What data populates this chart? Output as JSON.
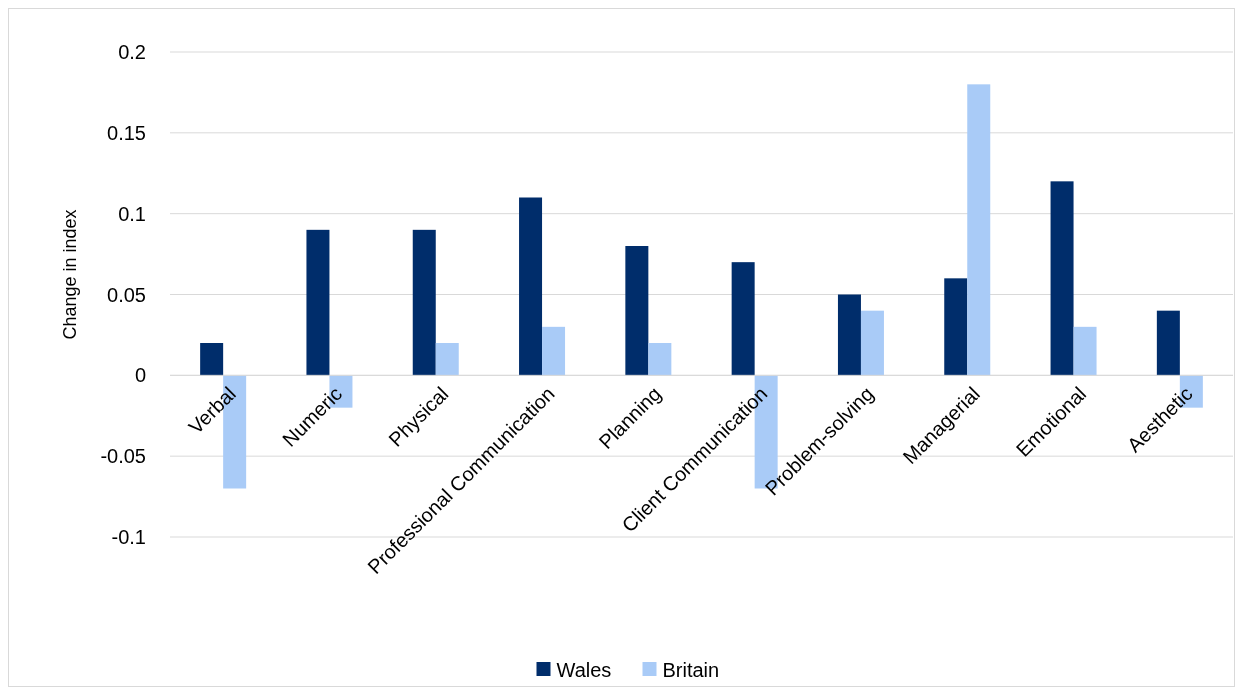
{
  "chart_data": {
    "type": "bar",
    "ylabel": "Change in index",
    "categories": [
      "Verbal",
      "Numeric",
      "Physical",
      "Professional Communication",
      "Planning",
      "Client Communication",
      "Problem-solving",
      "Managerial",
      "Emotional",
      "Aesthetic"
    ],
    "series": [
      {
        "name": "Wales",
        "color": "#002d6b",
        "values": [
          0.02,
          0.09,
          0.09,
          0.11,
          0.08,
          0.07,
          0.05,
          0.06,
          0.12,
          0.04
        ]
      },
      {
        "name": "Britain",
        "color": "#a9cbf7",
        "values": [
          -0.07,
          -0.02,
          0.02,
          0.03,
          0.02,
          -0.07,
          0.04,
          0.18,
          0.03,
          -0.02
        ]
      }
    ],
    "ylim": [
      -0.1,
      0.2
    ],
    "yticks": [
      -0.1,
      -0.05,
      0,
      0.05,
      0.1,
      0.15,
      0.2
    ],
    "grid": "y",
    "legend": "bottom"
  }
}
